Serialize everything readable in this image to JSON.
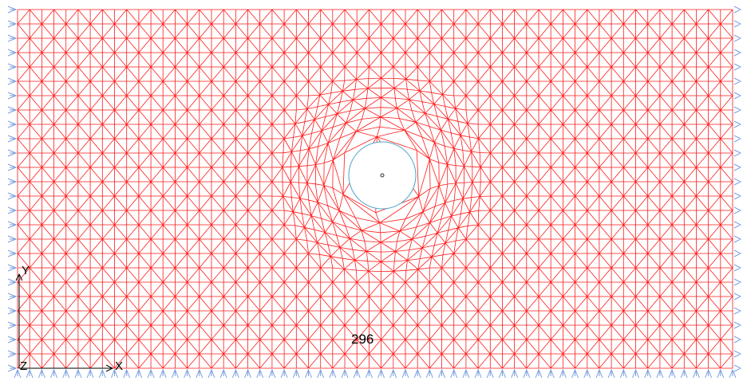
{
  "axes": {
    "y_label": "Y",
    "x_label": "X",
    "z_label": "Z"
  },
  "annotation": "296"
}
